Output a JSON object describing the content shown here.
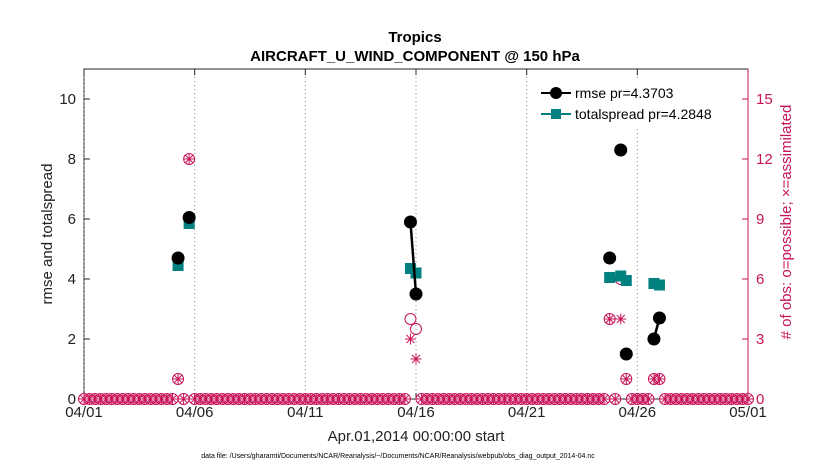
{
  "chart_data": {
    "type": "scatter",
    "title": "Tropics",
    "subtitle": "AIRCRAFT_U_WIND_COMPONENT @ 150 hPa",
    "xlabel": "Apr.01,2014 00:00:00 start",
    "ylabel": "rmse and totalspread",
    "ylabel_right": "# of obs: o=possible; ×=assimilated",
    "footnote": "data file: /Users/gharamti/Documents/NCAR/Reanalysis/~/Documents/NCAR/Reanalysis/webpub/obs_diag_output_2014-04.nc",
    "x_ticks": [
      "04/01",
      "04/06",
      "04/11",
      "04/16",
      "04/21",
      "04/26",
      "05/01"
    ],
    "x_tick_values": [
      0,
      5,
      10,
      15,
      20,
      25,
      30
    ],
    "xlim": [
      0,
      30
    ],
    "ylim": [
      0,
      11
    ],
    "y_ticks": [
      "0",
      "2",
      "4",
      "6",
      "8",
      "10"
    ],
    "y_tick_values": [
      0,
      2,
      4,
      6,
      8,
      10
    ],
    "ylim_right": [
      0,
      16.5
    ],
    "y_ticks_right": [
      "0",
      "3",
      "6",
      "9",
      "12",
      "15"
    ],
    "y_tick_values_right": [
      0,
      3,
      6,
      9,
      12,
      15
    ],
    "legend_position": "top-right",
    "colors": {
      "rmse": "#000000",
      "spread": "#00807f",
      "obs": "#c8145a"
    },
    "series": [
      {
        "name": "rmse pr=4.3703",
        "segments": [
          [
            [
              4.25,
              4.7
            ]
          ],
          [
            [
              4.75,
              6.05
            ]
          ],
          [
            [
              14.75,
              5.9
            ],
            [
              15.0,
              3.5
            ]
          ],
          [
            [
              23.75,
              4.7
            ]
          ],
          [
            [
              24.25,
              8.3
            ]
          ],
          [
            [
              24.5,
              1.5
            ]
          ],
          [
            [
              25.75,
              2.0
            ],
            [
              26.0,
              2.7
            ]
          ]
        ]
      },
      {
        "name": "totalspread pr=4.2848",
        "segments": [
          [
            [
              4.25,
              4.45
            ]
          ],
          [
            [
              4.75,
              5.85
            ]
          ],
          [
            [
              14.75,
              4.35
            ],
            [
              15.0,
              4.2
            ]
          ],
          [
            [
              23.75,
              4.05
            ],
            [
              24.25,
              4.1
            ],
            [
              24.5,
              3.95
            ]
          ],
          [
            [
              25.75,
              3.85
            ],
            [
              26.0,
              3.8
            ]
          ]
        ]
      }
    ],
    "obs_possible": [
      [
        4.25,
        1.0
      ],
      [
        4.75,
        12.0
      ],
      [
        14.75,
        4.0
      ],
      [
        15.0,
        3.5
      ],
      [
        23.75,
        4.0
      ],
      [
        24.25,
        6.0
      ],
      [
        24.5,
        1.0
      ],
      [
        25.75,
        1.0
      ],
      [
        26.0,
        1.0
      ]
    ],
    "obs_assimilated": [
      [
        4.25,
        1.0
      ],
      [
        4.75,
        12.0
      ],
      [
        14.75,
        3.0
      ],
      [
        15.0,
        2.0
      ],
      [
        23.75,
        4.0
      ],
      [
        24.25,
        4.0
      ],
      [
        24.5,
        1.0
      ],
      [
        25.75,
        1.0
      ],
      [
        26.0,
        1.0
      ]
    ],
    "zero_obs_step": 0.25
  }
}
